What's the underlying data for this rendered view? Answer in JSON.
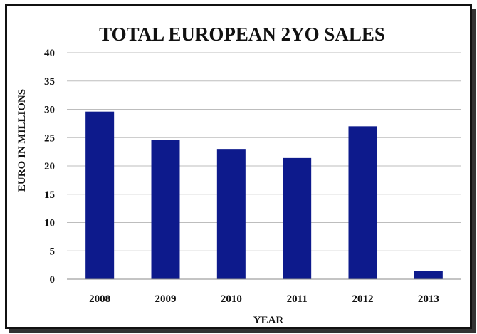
{
  "chart_data": {
    "type": "bar",
    "title": "TOTAL EUROPEAN 2YO SALES",
    "xlabel": "YEAR",
    "ylabel": "EURO IN MILLIONS",
    "categories": [
      "2008",
      "2009",
      "2010",
      "2011",
      "2012",
      "2013"
    ],
    "values": [
      29.6,
      24.6,
      23.0,
      21.4,
      27.0,
      1.5
    ],
    "ylim": [
      0,
      40
    ],
    "yticks": [
      0,
      5,
      10,
      15,
      20,
      25,
      30,
      35,
      40
    ],
    "grid": true,
    "legend": "none",
    "bar_color": "#0d1a8c",
    "grid_color": "#bdbdbd"
  }
}
